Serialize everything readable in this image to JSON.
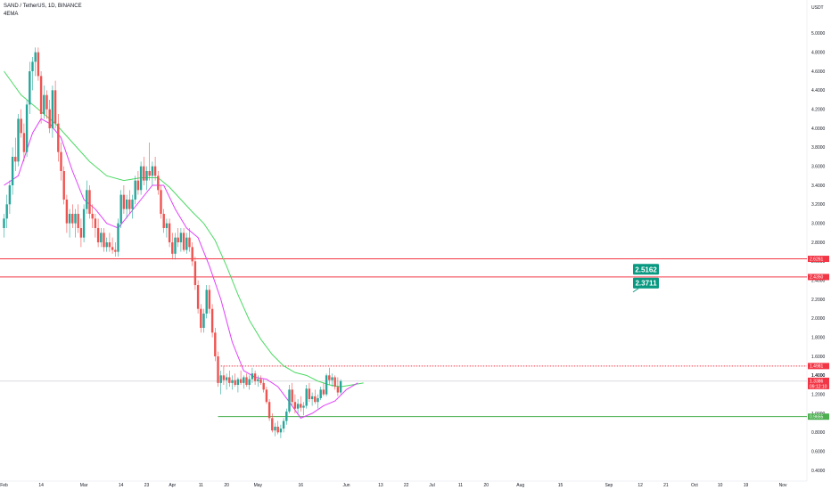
{
  "header": {
    "symbol_line": "SAND / TetherUS, 1D, BINANCE",
    "indicator": "4EMA",
    "currency": "USDT"
  },
  "colors": {
    "up": "#26a69a",
    "down": "#ef5350",
    "ema_fast": "#e040fb",
    "ema_slow": "#4cd964",
    "resistance": "#f23645",
    "support": "#4caf50",
    "callout": "#089981",
    "price_label": "#f23645"
  },
  "chart_data": {
    "type": "candlestick",
    "title": "SAND / TetherUS, 1D, BINANCE",
    "ylim": [
      0.4,
      5.2
    ],
    "y_ticks": [
      "5.0000",
      "4.8000",
      "4.6000",
      "4.4000",
      "4.2000",
      "4.0000",
      "3.8000",
      "3.6000",
      "3.4000",
      "3.2000",
      "3.0000",
      "2.8000",
      "2.6000",
      "2.4000",
      "2.2000",
      "2.0000",
      "1.8000",
      "1.6000",
      "1.4000",
      "1.2000",
      "1.0000",
      "0.8000",
      "0.6000",
      "0.4000"
    ],
    "x_labels": [
      {
        "label": "Feb",
        "day": 0
      },
      {
        "label": "14",
        "day": 13
      },
      {
        "label": "Mar",
        "day": 28
      },
      {
        "label": "14",
        "day": 41
      },
      {
        "label": "23",
        "day": 50
      },
      {
        "label": "Apr",
        "day": 59
      },
      {
        "label": "11",
        "day": 69
      },
      {
        "label": "20",
        "day": 78
      },
      {
        "label": "May",
        "day": 89
      },
      {
        "label": "16",
        "day": 104
      },
      {
        "label": "Jun",
        "day": 120
      },
      {
        "label": "13",
        "day": 132
      },
      {
        "label": "22",
        "day": 141
      },
      {
        "label": "Jul",
        "day": 150
      },
      {
        "label": "11",
        "day": 160
      },
      {
        "label": "20",
        "day": 169
      },
      {
        "label": "Aug",
        "day": 181
      },
      {
        "label": "15",
        "day": 195
      },
      {
        "label": "Sep",
        "day": 212
      },
      {
        "label": "12",
        "day": 223
      },
      {
        "label": "21",
        "day": 232
      },
      {
        "label": "Oct",
        "day": 242
      },
      {
        "label": "10",
        "day": 251
      },
      {
        "label": "19",
        "day": 260
      },
      {
        "label": "Nov",
        "day": 273
      }
    ],
    "candles": [
      [
        2.95,
        3.1,
        2.85,
        3.05
      ],
      [
        3.05,
        3.3,
        2.95,
        3.2
      ],
      [
        3.2,
        3.45,
        3.1,
        3.4
      ],
      [
        3.4,
        3.8,
        3.3,
        3.7
      ],
      [
        3.7,
        3.9,
        3.55,
        3.65
      ],
      [
        3.65,
        4.15,
        3.6,
        4.1
      ],
      [
        4.1,
        4.2,
        3.9,
        3.95
      ],
      [
        3.95,
        4.05,
        3.65,
        3.75
      ],
      [
        3.75,
        4.3,
        3.7,
        4.25
      ],
      [
        4.25,
        4.7,
        4.15,
        4.6
      ],
      [
        4.6,
        4.75,
        4.4,
        4.7
      ],
      [
        4.7,
        4.85,
        4.55,
        4.8
      ],
      [
        4.8,
        4.85,
        4.5,
        4.55
      ],
      [
        4.55,
        4.6,
        4.05,
        4.15
      ],
      [
        4.15,
        4.45,
        4.1,
        4.35
      ],
      [
        4.35,
        4.4,
        4.1,
        4.2
      ],
      [
        4.2,
        4.3,
        3.95,
        4.0
      ],
      [
        4.0,
        4.45,
        3.9,
        4.4
      ],
      [
        4.4,
        4.5,
        4.0,
        4.05
      ],
      [
        4.05,
        4.15,
        3.65,
        3.75
      ],
      [
        3.75,
        3.85,
        3.45,
        3.55
      ],
      [
        3.55,
        3.6,
        3.2,
        3.25
      ],
      [
        3.25,
        3.3,
        2.9,
        3.0
      ],
      [
        3.0,
        3.15,
        2.85,
        3.1
      ],
      [
        3.1,
        3.2,
        2.95,
        3.0
      ],
      [
        3.0,
        3.15,
        2.85,
        3.1
      ],
      [
        3.1,
        3.2,
        2.9,
        2.95
      ],
      [
        2.95,
        3.05,
        2.75,
        2.85
      ],
      [
        2.85,
        3.2,
        2.8,
        3.15
      ],
      [
        3.15,
        3.45,
        3.1,
        3.35
      ],
      [
        3.35,
        3.4,
        3.05,
        3.1
      ],
      [
        3.1,
        3.2,
        2.95,
        3.05
      ],
      [
        3.05,
        3.1,
        2.85,
        2.95
      ],
      [
        2.95,
        3.05,
        2.75,
        2.8
      ],
      [
        2.8,
        2.95,
        2.75,
        2.9
      ],
      [
        2.9,
        2.95,
        2.7,
        2.75
      ],
      [
        2.75,
        2.85,
        2.7,
        2.8
      ],
      [
        2.8,
        2.9,
        2.7,
        2.75
      ],
      [
        2.75,
        2.85,
        2.68,
        2.72
      ],
      [
        2.72,
        2.8,
        2.65,
        2.7
      ],
      [
        2.7,
        3.05,
        2.65,
        3.0
      ],
      [
        3.0,
        3.35,
        2.95,
        3.3
      ],
      [
        3.3,
        3.4,
        3.1,
        3.15
      ],
      [
        3.15,
        3.3,
        3.05,
        3.25
      ],
      [
        3.25,
        3.35,
        3.1,
        3.15
      ],
      [
        3.15,
        3.3,
        3.05,
        3.25
      ],
      [
        3.25,
        3.5,
        3.2,
        3.45
      ],
      [
        3.45,
        3.55,
        3.3,
        3.35
      ],
      [
        3.35,
        3.65,
        3.3,
        3.6
      ],
      [
        3.6,
        3.7,
        3.4,
        3.45
      ],
      [
        3.45,
        3.6,
        3.35,
        3.55
      ],
      [
        3.55,
        3.85,
        3.45,
        3.5
      ],
      [
        3.5,
        3.65,
        3.4,
        3.6
      ],
      [
        3.6,
        3.7,
        3.45,
        3.5
      ],
      [
        3.5,
        3.55,
        3.3,
        3.35
      ],
      [
        3.35,
        3.4,
        3.05,
        3.1
      ],
      [
        3.1,
        3.15,
        2.9,
        2.95
      ],
      [
        2.95,
        3.05,
        2.85,
        3.0
      ],
      [
        3.0,
        3.05,
        2.75,
        2.8
      ],
      [
        2.8,
        2.9,
        2.62,
        2.68
      ],
      [
        2.68,
        2.9,
        2.62,
        2.85
      ],
      [
        2.85,
        2.95,
        2.75,
        2.8
      ],
      [
        2.8,
        2.95,
        2.7,
        2.9
      ],
      [
        2.9,
        2.95,
        2.7,
        2.72
      ],
      [
        2.72,
        2.9,
        2.68,
        2.85
      ],
      [
        2.85,
        2.95,
        2.7,
        2.75
      ],
      [
        2.75,
        2.8,
        2.55,
        2.6
      ],
      [
        2.6,
        2.65,
        2.3,
        2.35
      ],
      [
        2.35,
        2.4,
        2.05,
        2.1
      ],
      [
        2.1,
        2.15,
        1.85,
        1.9
      ],
      [
        1.9,
        2.1,
        1.85,
        2.05
      ],
      [
        2.05,
        2.35,
        2.0,
        2.3
      ],
      [
        2.3,
        2.35,
        2.05,
        2.1
      ],
      [
        2.1,
        2.15,
        1.8,
        1.85
      ],
      [
        1.85,
        1.9,
        1.55,
        1.6
      ],
      [
        1.6,
        1.65,
        1.28,
        1.32
      ],
      [
        1.32,
        1.45,
        1.2,
        1.4
      ],
      [
        1.4,
        1.5,
        1.3,
        1.35
      ],
      [
        1.35,
        1.42,
        1.25,
        1.38
      ],
      [
        1.38,
        1.45,
        1.28,
        1.32
      ],
      [
        1.32,
        1.4,
        1.25,
        1.35
      ],
      [
        1.35,
        1.42,
        1.28,
        1.3
      ],
      [
        1.3,
        1.38,
        1.22,
        1.36
      ],
      [
        1.36,
        1.45,
        1.3,
        1.32
      ],
      [
        1.32,
        1.4,
        1.26,
        1.38
      ],
      [
        1.38,
        1.42,
        1.28,
        1.3
      ],
      [
        1.3,
        1.4,
        1.25,
        1.36
      ],
      [
        1.36,
        1.48,
        1.32,
        1.42
      ],
      [
        1.42,
        1.45,
        1.3,
        1.34
      ],
      [
        1.34,
        1.4,
        1.28,
        1.36
      ],
      [
        1.36,
        1.4,
        1.3,
        1.32
      ],
      [
        1.32,
        1.36,
        1.22,
        1.25
      ],
      [
        1.25,
        1.28,
        1.1,
        1.12
      ],
      [
        1.12,
        1.15,
        0.92,
        0.95
      ],
      [
        0.95,
        1.0,
        0.8,
        0.82
      ],
      [
        0.82,
        0.9,
        0.76,
        0.86
      ],
      [
        0.86,
        0.92,
        0.78,
        0.8
      ],
      [
        0.8,
        0.88,
        0.74,
        0.84
      ],
      [
        0.84,
        0.95,
        0.8,
        0.92
      ],
      [
        0.92,
        1.05,
        0.88,
        1.02
      ],
      [
        1.02,
        1.3,
        1.0,
        1.25
      ],
      [
        1.25,
        1.32,
        1.08,
        1.12
      ],
      [
        1.12,
        1.2,
        1.0,
        1.05
      ],
      [
        1.05,
        1.15,
        1.0,
        1.1
      ],
      [
        1.1,
        1.18,
        1.02,
        1.06
      ],
      [
        1.06,
        1.12,
        0.98,
        1.08
      ],
      [
        1.08,
        1.3,
        1.05,
        1.26
      ],
      [
        1.26,
        1.32,
        1.12,
        1.15
      ],
      [
        1.15,
        1.22,
        1.08,
        1.18
      ],
      [
        1.18,
        1.25,
        1.1,
        1.12
      ],
      [
        1.12,
        1.2,
        1.05,
        1.16
      ],
      [
        1.16,
        1.28,
        1.14,
        1.25
      ],
      [
        1.25,
        1.32,
        1.18,
        1.2
      ],
      [
        1.2,
        1.42,
        1.18,
        1.4
      ],
      [
        1.4,
        1.48,
        1.3,
        1.35
      ],
      [
        1.35,
        1.42,
        1.28,
        1.38
      ],
      [
        1.38,
        1.4,
        1.25,
        1.28
      ],
      [
        1.28,
        1.38,
        1.18,
        1.22
      ],
      [
        1.22,
        1.36,
        1.2,
        1.34
      ]
    ],
    "ema_fast": [
      [
        0,
        3.4
      ],
      [
        5,
        3.5
      ],
      [
        10,
        3.95
      ],
      [
        13,
        4.1
      ],
      [
        16,
        4.05
      ],
      [
        20,
        3.9
      ],
      [
        24,
        3.55
      ],
      [
        28,
        3.25
      ],
      [
        32,
        3.15
      ],
      [
        36,
        3.0
      ],
      [
        40,
        2.95
      ],
      [
        44,
        3.1
      ],
      [
        48,
        3.25
      ],
      [
        52,
        3.4
      ],
      [
        56,
        3.4
      ],
      [
        60,
        3.15
      ],
      [
        64,
        2.95
      ],
      [
        68,
        2.85
      ],
      [
        72,
        2.55
      ],
      [
        76,
        2.2
      ],
      [
        80,
        1.75
      ],
      [
        84,
        1.45
      ],
      [
        88,
        1.38
      ],
      [
        92,
        1.36
      ],
      [
        96,
        1.28
      ],
      [
        100,
        1.12
      ],
      [
        104,
        0.95
      ],
      [
        108,
        1.0
      ],
      [
        112,
        1.08
      ],
      [
        116,
        1.13
      ],
      [
        120,
        1.25
      ],
      [
        124,
        1.32
      ]
    ],
    "ema_slow": [
      [
        0,
        4.6
      ],
      [
        6,
        4.35
      ],
      [
        12,
        4.2
      ],
      [
        18,
        4.05
      ],
      [
        24,
        3.85
      ],
      [
        30,
        3.65
      ],
      [
        36,
        3.5
      ],
      [
        42,
        3.45
      ],
      [
        48,
        3.48
      ],
      [
        54,
        3.48
      ],
      [
        58,
        3.38
      ],
      [
        62,
        3.25
      ],
      [
        66,
        3.12
      ],
      [
        70,
        3.0
      ],
      [
        74,
        2.82
      ],
      [
        78,
        2.55
      ],
      [
        82,
        2.25
      ],
      [
        86,
        1.98
      ],
      [
        90,
        1.78
      ],
      [
        94,
        1.62
      ],
      [
        98,
        1.5
      ],
      [
        102,
        1.43
      ],
      [
        106,
        1.4
      ],
      [
        110,
        1.34
      ],
      [
        114,
        1.3
      ],
      [
        118,
        1.28
      ],
      [
        122,
        1.3
      ],
      [
        126,
        1.32
      ]
    ],
    "levels": [
      {
        "name": "resistance-1",
        "value": 2.6261,
        "label": "2.6261",
        "style": "solid",
        "color": "#f23645"
      },
      {
        "name": "resistance-2",
        "value": 2.435,
        "label": "2.4350",
        "style": "solid",
        "color": "#f23645"
      },
      {
        "name": "local-high",
        "value": 1.4981,
        "label": "1.4981",
        "style": "dotted",
        "color": "#f23645"
      },
      {
        "name": "support",
        "value": 0.9655,
        "label": "0.9655",
        "style": "solid",
        "color": "#4caf50"
      }
    ],
    "callouts": [
      {
        "name": "callout-upper",
        "value": 2.5162,
        "label": "2.5162"
      },
      {
        "name": "callout-lower",
        "value": 2.3711,
        "label": "2.3711"
      }
    ],
    "current_price": {
      "value": 1.3386,
      "label": "1.3386",
      "countdown": "09:12:10",
      "extra": "1.4000",
      "extra_value": 1.4
    }
  }
}
